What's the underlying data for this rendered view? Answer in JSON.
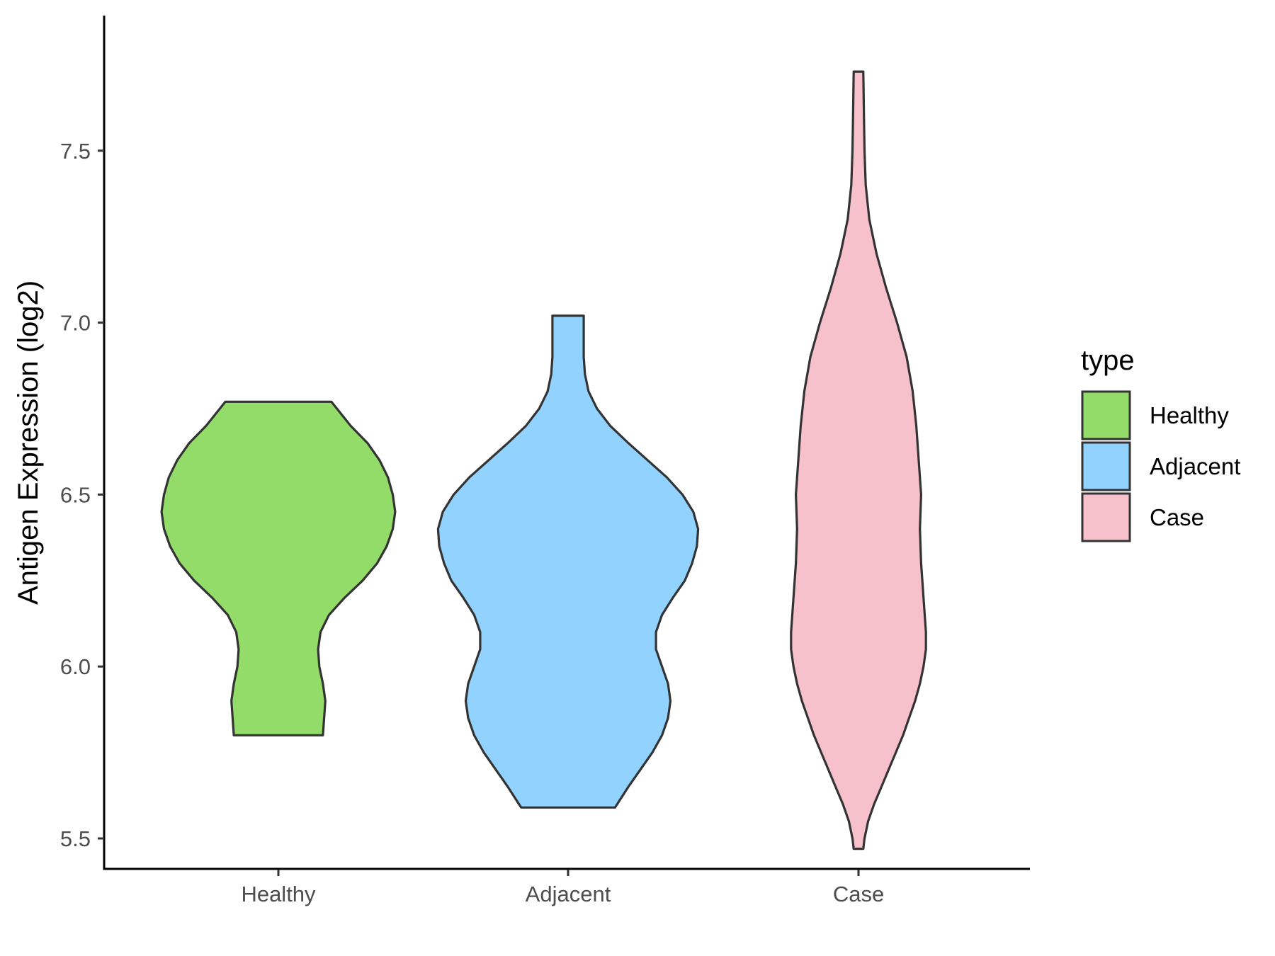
{
  "chart_data": {
    "type": "violin",
    "title": "",
    "xlabel": "",
    "ylabel": "Antigen Expression (log2)",
    "ylim": [
      5.35,
      7.85
    ],
    "yticks": [
      "5.5",
      "6.0",
      "6.5",
      "7.0",
      "7.5"
    ],
    "ytick_values": [
      5.5,
      6.0,
      6.5,
      7.0,
      7.5
    ],
    "categories": [
      "Healthy",
      "Adjacent",
      "Case"
    ],
    "grid": false,
    "legend": {
      "title": "type",
      "placement": "right",
      "entries": [
        "Healthy",
        "Adjacent",
        "Case"
      ]
    },
    "series": [
      {
        "name": "Healthy",
        "color": "#93dc6a",
        "min": 5.8,
        "max": 6.77,
        "density": [
          [
            5.8,
            0.37
          ],
          [
            5.85,
            0.38
          ],
          [
            5.9,
            0.39
          ],
          [
            5.95,
            0.37
          ],
          [
            6.0,
            0.34
          ],
          [
            6.05,
            0.33
          ],
          [
            6.1,
            0.35
          ],
          [
            6.15,
            0.42
          ],
          [
            6.2,
            0.55
          ],
          [
            6.25,
            0.7
          ],
          [
            6.3,
            0.82
          ],
          [
            6.35,
            0.9
          ],
          [
            6.4,
            0.95
          ],
          [
            6.45,
            0.97
          ],
          [
            6.5,
            0.95
          ],
          [
            6.55,
            0.91
          ],
          [
            6.6,
            0.84
          ],
          [
            6.65,
            0.74
          ],
          [
            6.7,
            0.6
          ],
          [
            6.77,
            0.44
          ]
        ]
      },
      {
        "name": "Adjacent",
        "color": "#92d2ff",
        "min": 5.59,
        "max": 7.02,
        "density": [
          [
            5.59,
            0.39
          ],
          [
            5.65,
            0.5
          ],
          [
            5.7,
            0.6
          ],
          [
            5.75,
            0.7
          ],
          [
            5.8,
            0.78
          ],
          [
            5.85,
            0.83
          ],
          [
            5.9,
            0.85
          ],
          [
            5.95,
            0.83
          ],
          [
            6.0,
            0.78
          ],
          [
            6.05,
            0.73
          ],
          [
            6.1,
            0.73
          ],
          [
            6.15,
            0.78
          ],
          [
            6.2,
            0.87
          ],
          [
            6.25,
            0.97
          ],
          [
            6.3,
            1.03
          ],
          [
            6.35,
            1.07
          ],
          [
            6.4,
            1.08
          ],
          [
            6.45,
            1.04
          ],
          [
            6.5,
            0.95
          ],
          [
            6.55,
            0.82
          ],
          [
            6.6,
            0.66
          ],
          [
            6.65,
            0.5
          ],
          [
            6.7,
            0.35
          ],
          [
            6.75,
            0.24
          ],
          [
            6.8,
            0.17
          ],
          [
            6.85,
            0.14
          ],
          [
            6.9,
            0.13
          ],
          [
            6.95,
            0.13
          ],
          [
            7.02,
            0.13
          ]
        ]
      },
      {
        "name": "Case",
        "color": "#f7c1cc",
        "min": 5.47,
        "max": 7.73,
        "density": [
          [
            5.47,
            0.04
          ],
          [
            5.5,
            0.05
          ],
          [
            5.55,
            0.08
          ],
          [
            5.6,
            0.13
          ],
          [
            5.65,
            0.19
          ],
          [
            5.7,
            0.25
          ],
          [
            5.75,
            0.31
          ],
          [
            5.8,
            0.37
          ],
          [
            5.85,
            0.42
          ],
          [
            5.9,
            0.47
          ],
          [
            5.95,
            0.51
          ],
          [
            6.0,
            0.54
          ],
          [
            6.05,
            0.56
          ],
          [
            6.1,
            0.56
          ],
          [
            6.2,
            0.54
          ],
          [
            6.3,
            0.52
          ],
          [
            6.4,
            0.51
          ],
          [
            6.5,
            0.52
          ],
          [
            6.6,
            0.5
          ],
          [
            6.7,
            0.48
          ],
          [
            6.8,
            0.45
          ],
          [
            6.9,
            0.4
          ],
          [
            7.0,
            0.32
          ],
          [
            7.1,
            0.23
          ],
          [
            7.2,
            0.15
          ],
          [
            7.3,
            0.09
          ],
          [
            7.4,
            0.06
          ],
          [
            7.5,
            0.05
          ],
          [
            7.6,
            0.045
          ],
          [
            7.73,
            0.04
          ]
        ]
      }
    ]
  }
}
